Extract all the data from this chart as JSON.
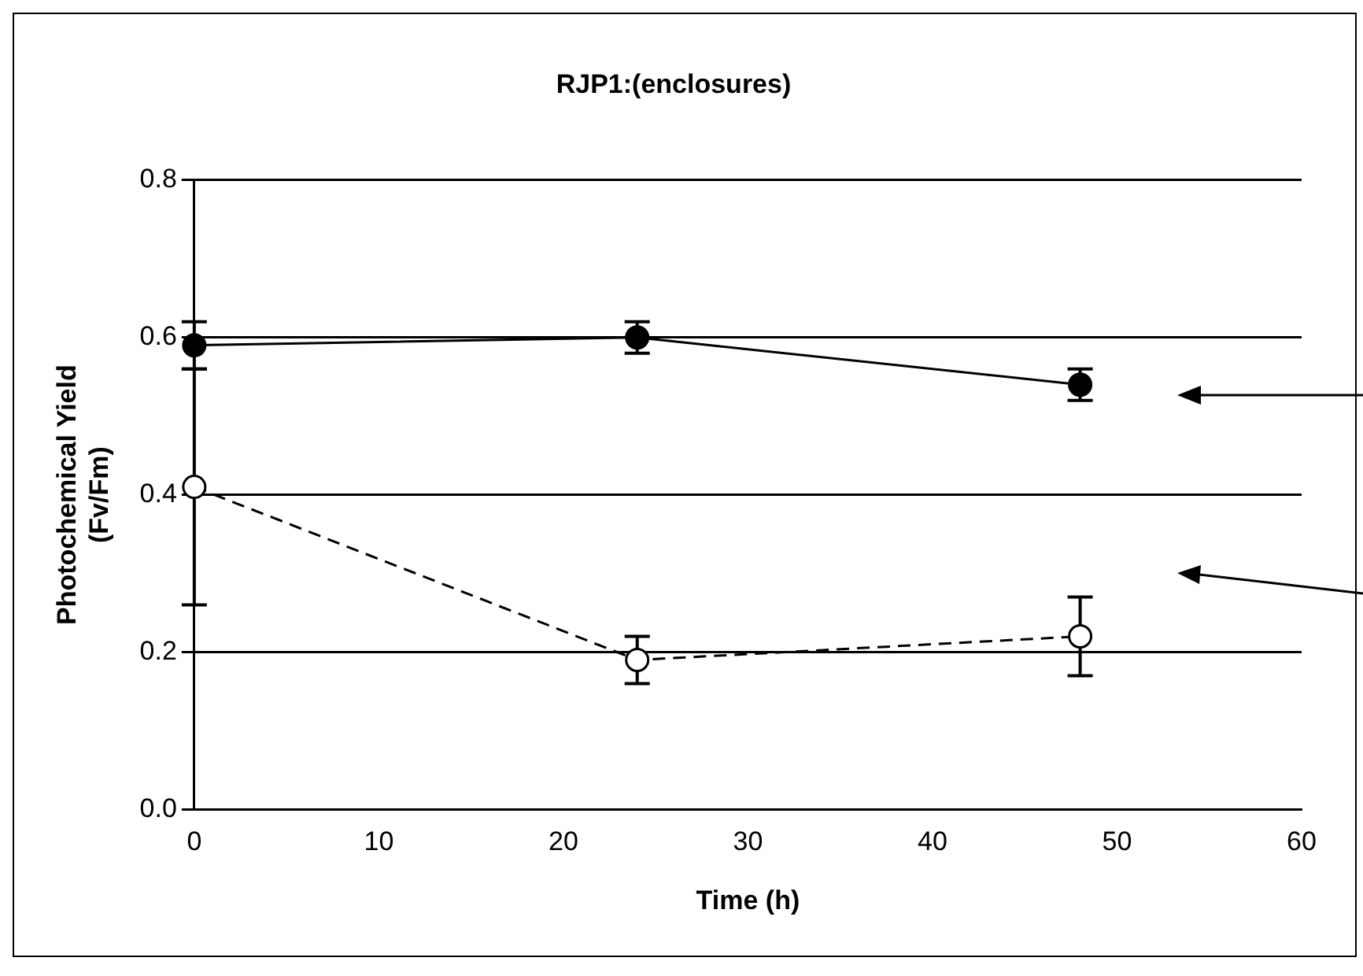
{
  "chart_data": {
    "type": "line",
    "title": "RJP1:(enclosures)",
    "xlabel": "Time (h)",
    "ylabel": "Photochemical Yield\n(Fv/Fm)",
    "x": [
      0,
      24,
      48
    ],
    "series": [
      {
        "color": "#000000",
        "values": [
          0.59,
          0.6,
          0.54
        ],
        "errors": [
          0.03,
          0.02,
          0.02
        ],
        "line_style": "solid",
        "marker": "circle"
      },
      {
        "color": "#000000",
        "values": [
          0.41,
          0.19,
          0.22
        ],
        "errors": [
          0.15,
          0.03,
          0.05
        ],
        "line_style": "dashed",
        "marker": "circle"
      }
    ],
    "xlim": [
      0,
      60
    ],
    "xticks": [
      0,
      10,
      20,
      30,
      40,
      50,
      60
    ],
    "ylim": [
      0,
      0.8
    ],
    "yticks": [
      {
        "value": 0,
        "label": "0.0"
      },
      {
        "value": 0.2,
        "label": "0.2"
      },
      {
        "value": 0.4,
        "label": "0.4"
      },
      {
        "value": 0.6,
        "label": "0.6"
      },
      {
        "value": 0.8,
        "label": "0.8"
      }
    ],
    "grid": "y",
    "legend": false
  }
}
